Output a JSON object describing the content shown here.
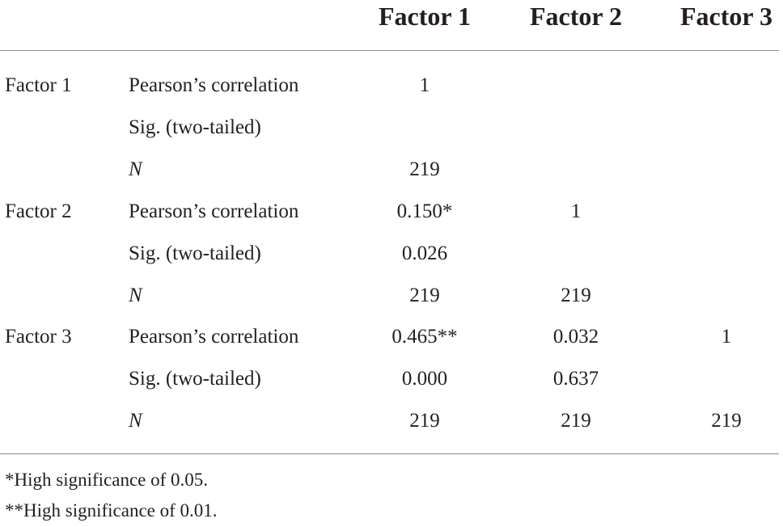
{
  "header": {
    "columns": [
      "Factor 1",
      "Factor 2",
      "Factor 3"
    ]
  },
  "rows": [
    {
      "factor": "Factor 1",
      "stat": "Pearson’s correlation",
      "values": [
        "1",
        "",
        ""
      ]
    },
    {
      "factor": "",
      "stat": "Sig. (two-tailed)",
      "values": [
        "",
        "",
        ""
      ]
    },
    {
      "factor": "",
      "stat": "N",
      "values": [
        "219",
        "",
        ""
      ]
    },
    {
      "factor": "Factor 2",
      "stat": "Pearson’s correlation",
      "values": [
        "0.150*",
        "1",
        ""
      ]
    },
    {
      "factor": "",
      "stat": "Sig. (two-tailed)",
      "values": [
        "0.026",
        "",
        ""
      ]
    },
    {
      "factor": "",
      "stat": "N",
      "values": [
        "219",
        "219",
        ""
      ]
    },
    {
      "factor": "Factor 3",
      "stat": "Pearson’s correlation",
      "values": [
        "0.465**",
        "0.032",
        "1"
      ]
    },
    {
      "factor": "",
      "stat": "Sig. (two-tailed)",
      "values": [
        "0.000",
        "0.637",
        ""
      ]
    },
    {
      "factor": "",
      "stat": "N",
      "values": [
        "219",
        "219",
        "219"
      ]
    }
  ],
  "footnotes": [
    "*High significance of 0.05.",
    "**High significance of 0.01."
  ]
}
